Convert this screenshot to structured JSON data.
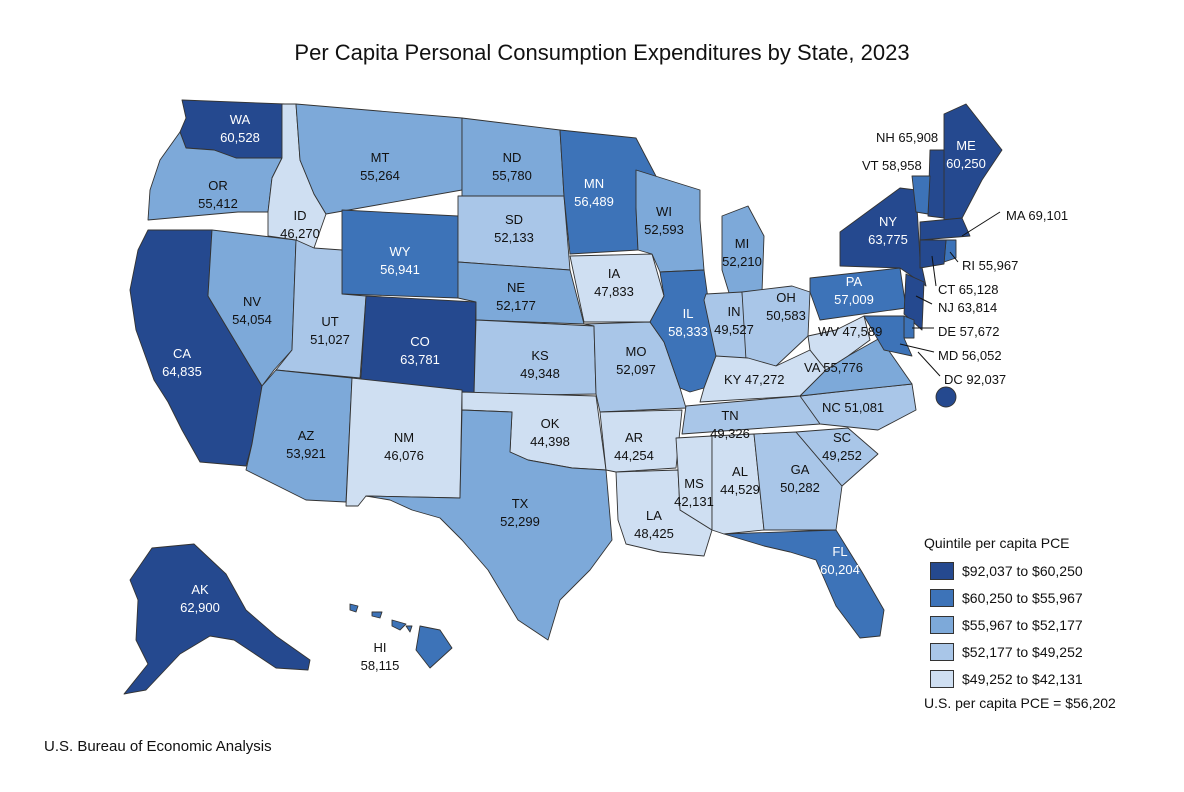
{
  "title": "Per Capita Personal Consumption Expenditures by State, 2023",
  "source": "U.S. Bureau of Economic Analysis",
  "colors": {
    "q1": "#25498f",
    "q2": "#3d73b8",
    "q3": "#7da9d9",
    "q4": "#a9c6e8",
    "q5": "#cfdff2"
  },
  "legend": {
    "title": "Quintile per capita PCE",
    "items": [
      {
        "label": "$92,037 to $60,250",
        "color": "#25498f"
      },
      {
        "label": "$60,250 to $55,967",
        "color": "#3d73b8"
      },
      {
        "label": "$55,967 to $52,177",
        "color": "#7da9d9"
      },
      {
        "label": "$52,177 to $49,252",
        "color": "#a9c6e8"
      },
      {
        "label": "$49,252 to $42,131",
        "color": "#cfdff2"
      }
    ],
    "note": "U.S. per capita PCE = $56,202"
  },
  "states": {
    "WA": {
      "abbr": "WA",
      "value": "60,528",
      "quintile": 1
    },
    "OR": {
      "abbr": "OR",
      "value": "55,412",
      "quintile": 3
    },
    "CA": {
      "abbr": "CA",
      "value": "64,835",
      "quintile": 1
    },
    "NV": {
      "abbr": "NV",
      "value": "54,054",
      "quintile": 3
    },
    "ID": {
      "abbr": "ID",
      "value": "46,270",
      "quintile": 5
    },
    "MT": {
      "abbr": "MT",
      "value": "55,264",
      "quintile": 3
    },
    "WY": {
      "abbr": "WY",
      "value": "56,941",
      "quintile": 2
    },
    "UT": {
      "abbr": "UT",
      "value": "51,027",
      "quintile": 4
    },
    "AZ": {
      "abbr": "AZ",
      "value": "53,921",
      "quintile": 3
    },
    "CO": {
      "abbr": "CO",
      "value": "63,781",
      "quintile": 1
    },
    "NM": {
      "abbr": "NM",
      "value": "46,076",
      "quintile": 5
    },
    "ND": {
      "abbr": "ND",
      "value": "55,780",
      "quintile": 3
    },
    "SD": {
      "abbr": "SD",
      "value": "52,133",
      "quintile": 4
    },
    "NE": {
      "abbr": "NE",
      "value": "52,177",
      "quintile": 3
    },
    "KS": {
      "abbr": "KS",
      "value": "49,348",
      "quintile": 4
    },
    "OK": {
      "abbr": "OK",
      "value": "44,398",
      "quintile": 5
    },
    "TX": {
      "abbr": "TX",
      "value": "52,299",
      "quintile": 3
    },
    "MN": {
      "abbr": "MN",
      "value": "56,489",
      "quintile": 2
    },
    "IA": {
      "abbr": "IA",
      "value": "47,833",
      "quintile": 5
    },
    "MO": {
      "abbr": "MO",
      "value": "52,097",
      "quintile": 4
    },
    "AR": {
      "abbr": "AR",
      "value": "44,254",
      "quintile": 5
    },
    "LA": {
      "abbr": "LA",
      "value": "48,425",
      "quintile": 5
    },
    "WI": {
      "abbr": "WI",
      "value": "52,593",
      "quintile": 3
    },
    "IL": {
      "abbr": "IL",
      "value": "58,333",
      "quintile": 2
    },
    "MI": {
      "abbr": "MI",
      "value": "52,210",
      "quintile": 3
    },
    "IN": {
      "abbr": "IN",
      "value": "49,527",
      "quintile": 4
    },
    "OH": {
      "abbr": "OH",
      "value": "50,583",
      "quintile": 4
    },
    "KY": {
      "abbr": "KY",
      "value": "47,272",
      "quintile": 5
    },
    "TN": {
      "abbr": "TN",
      "value": "49,326",
      "quintile": 4
    },
    "MS": {
      "abbr": "MS",
      "value": "42,131",
      "quintile": 5
    },
    "AL": {
      "abbr": "AL",
      "value": "44,529",
      "quintile": 5
    },
    "GA": {
      "abbr": "GA",
      "value": "50,282",
      "quintile": 4
    },
    "FL": {
      "abbr": "FL",
      "value": "60,204",
      "quintile": 2
    },
    "SC": {
      "abbr": "SC",
      "value": "49,252",
      "quintile": 4
    },
    "NC": {
      "abbr": "NC",
      "value": "51,081",
      "quintile": 4
    },
    "VA": {
      "abbr": "VA",
      "value": "55,776",
      "quintile": 3
    },
    "WV": {
      "abbr": "WV",
      "value": "47,589",
      "quintile": 5
    },
    "PA": {
      "abbr": "PA",
      "value": "57,009",
      "quintile": 2
    },
    "NY": {
      "abbr": "NY",
      "value": "63,775",
      "quintile": 1
    },
    "ME": {
      "abbr": "ME",
      "value": "60,250",
      "quintile": 1
    },
    "NH": {
      "abbr": "NH",
      "value": "65,908",
      "quintile": 1
    },
    "VT": {
      "abbr": "VT",
      "value": "58,958",
      "quintile": 2
    },
    "MA": {
      "abbr": "MA",
      "value": "69,101",
      "quintile": 1
    },
    "RI": {
      "abbr": "RI",
      "value": "55,967",
      "quintile": 2
    },
    "CT": {
      "abbr": "CT",
      "value": "65,128",
      "quintile": 1
    },
    "NJ": {
      "abbr": "NJ",
      "value": "63,814",
      "quintile": 1
    },
    "DE": {
      "abbr": "DE",
      "value": "57,672",
      "quintile": 2
    },
    "MD": {
      "abbr": "MD",
      "value": "56,052",
      "quintile": 2
    },
    "DC": {
      "abbr": "DC",
      "value": "92,037",
      "quintile": 1
    },
    "AK": {
      "abbr": "AK",
      "value": "62,900",
      "quintile": 1
    },
    "HI": {
      "abbr": "HI",
      "value": "58,115",
      "quintile": 2
    }
  }
}
